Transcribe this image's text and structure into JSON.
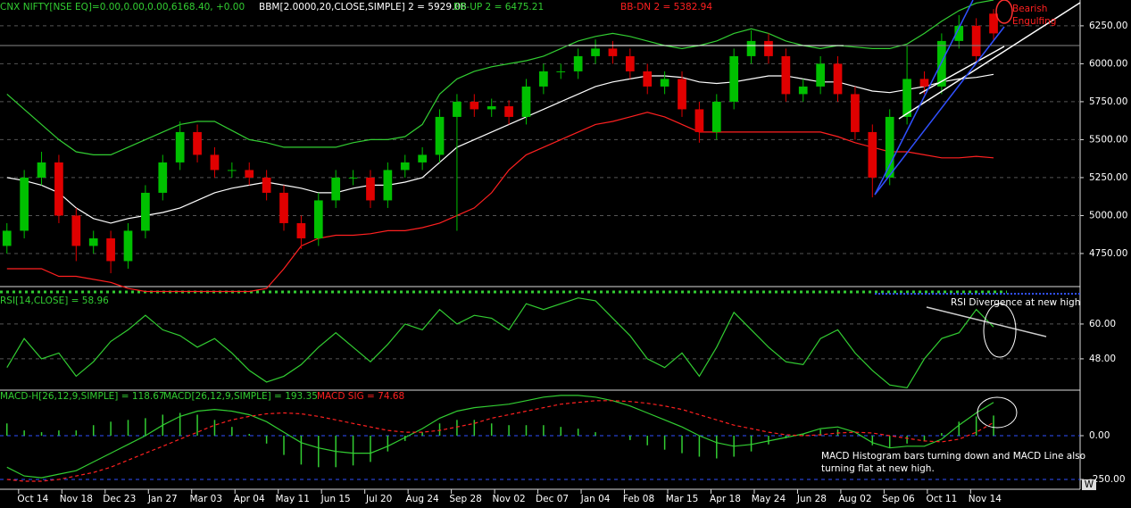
{
  "chart_data": [
    {
      "type": "candlestick",
      "title": "CNX NIFTY[NSE EQ]=0.00,0.00,0.00,6168.40, +0.00",
      "annotation": [
        "Bearish",
        "Engulfing"
      ],
      "up_color": "#00c000",
      "down_color": "#e00000",
      "open": [
        4800,
        4900,
        5250,
        5350,
        5000,
        4800,
        4850,
        4700,
        4900,
        5150,
        5350,
        5550,
        5400,
        5300,
        5300,
        5250,
        5150,
        4950,
        4850,
        5100,
        5250,
        5250,
        5100,
        5300,
        5350,
        5400,
        5650,
        5750,
        5700,
        5720,
        5650,
        5850,
        5950,
        5950,
        6050,
        6100,
        6050,
        5950,
        5850,
        5900,
        5700,
        5550,
        5750,
        6050,
        6150,
        6050,
        5800,
        5850,
        6000,
        5800,
        5550,
        5250,
        5650,
        5900,
        5850,
        6150,
        6250,
        6330
      ],
      "high": [
        4950,
        5300,
        5420,
        5400,
        5050,
        4900,
        4900,
        4950,
        5200,
        5400,
        5620,
        5600,
        5450,
        5350,
        5350,
        5300,
        5200,
        5000,
        5150,
        5300,
        5300,
        5300,
        5350,
        5400,
        5450,
        5700,
        5800,
        5800,
        5770,
        5760,
        5900,
        6000,
        6000,
        6100,
        6160,
        6150,
        6100,
        6000,
        5950,
        5950,
        5750,
        5800,
        6100,
        6220,
        6200,
        6100,
        5900,
        6050,
        6050,
        5850,
        5600,
        5700,
        6120,
        5950,
        6200,
        6320,
        6300,
        6360
      ],
      "low": [
        4750,
        4850,
        5200,
        4950,
        4700,
        4750,
        4620,
        4650,
        4850,
        5100,
        5300,
        5350,
        5250,
        5250,
        5200,
        5100,
        4900,
        4780,
        4800,
        5050,
        5200,
        5050,
        5050,
        5250,
        5300,
        5350,
        4900,
        5650,
        5650,
        5600,
        5600,
        5800,
        5900,
        5900,
        6000,
        6000,
        5900,
        5800,
        5800,
        5650,
        5480,
        5500,
        5700,
        6000,
        6000,
        5750,
        5750,
        5800,
        5750,
        5500,
        5120,
        5200,
        5600,
        5800,
        5800,
        6100,
        6000,
        6150
      ],
      "close": [
        4900,
        5250,
        5350,
        5000,
        4800,
        4850,
        4700,
        4900,
        5150,
        5350,
        5550,
        5400,
        5300,
        5300,
        5250,
        5150,
        4950,
        4850,
        5100,
        5250,
        5250,
        5100,
        5300,
        5350,
        5400,
        5650,
        5750,
        5700,
        5720,
        5650,
        5850,
        5950,
        5950,
        6050,
        6100,
        6050,
        5950,
        5850,
        5900,
        5700,
        5550,
        5750,
        6050,
        6150,
        6050,
        5800,
        5850,
        6000,
        5800,
        5550,
        5250,
        5650,
        5900,
        5850,
        6150,
        6250,
        6050,
        6200
      ],
      "series": [
        {
          "name": "BBM[2.0000,20,CLOSE,SIMPLE]  2 = 5929.08",
          "color": "#ffffff",
          "values": [
            5250,
            5230,
            5200,
            5150,
            5050,
            4980,
            4950,
            4980,
            5000,
            5020,
            5050,
            5100,
            5150,
            5180,
            5200,
            5220,
            5200,
            5180,
            5150,
            5150,
            5180,
            5200,
            5200,
            5220,
            5250,
            5350,
            5450,
            5500,
            5550,
            5600,
            5650,
            5700,
            5750,
            5800,
            5850,
            5880,
            5900,
            5920,
            5920,
            5910,
            5880,
            5870,
            5880,
            5900,
            5920,
            5920,
            5900,
            5880,
            5880,
            5850,
            5820,
            5810,
            5830,
            5850,
            5880,
            5900,
            5910,
            5930
          ]
        },
        {
          "name": "BB-UP  2 = 6475.21",
          "color": "#32cd32",
          "values": [
            5800,
            5700,
            5600,
            5500,
            5420,
            5400,
            5400,
            5450,
            5500,
            5550,
            5600,
            5620,
            5620,
            5560,
            5500,
            5480,
            5450,
            5450,
            5450,
            5450,
            5480,
            5500,
            5500,
            5520,
            5600,
            5800,
            5900,
            5950,
            5980,
            6000,
            6020,
            6050,
            6100,
            6150,
            6180,
            6200,
            6180,
            6150,
            6120,
            6100,
            6120,
            6150,
            6200,
            6230,
            6200,
            6150,
            6120,
            6100,
            6120,
            6110,
            6100,
            6100,
            6130,
            6200,
            6280,
            6350,
            6400,
            6420
          ]
        },
        {
          "name": "BB-DN  2 = 5382.94",
          "color": "#ff2020",
          "values": [
            4650,
            4650,
            4650,
            4600,
            4600,
            4580,
            4560,
            4520,
            4500,
            4500,
            4500,
            4500,
            4500,
            4500,
            4500,
            4520,
            4650,
            4800,
            4850,
            4870,
            4870,
            4880,
            4900,
            4900,
            4920,
            4950,
            5000,
            5050,
            5150,
            5300,
            5400,
            5450,
            5500,
            5550,
            5600,
            5620,
            5650,
            5680,
            5650,
            5600,
            5550,
            5550,
            5550,
            5550,
            5550,
            5550,
            5550,
            5550,
            5520,
            5480,
            5450,
            5420,
            5420,
            5400,
            5380,
            5380,
            5390,
            5380
          ]
        }
      ],
      "xlim": [
        -0.4,
        62
      ],
      "ylim": [
        4538,
        6420
      ],
      "yticks": [
        {
          "value": 4750,
          "label": "4750.00"
        },
        {
          "value": 5000,
          "label": "5000.00"
        },
        {
          "value": 5250,
          "label": "5250.00"
        },
        {
          "value": 5500,
          "label": "5500.00"
        },
        {
          "value": 5750,
          "label": "5750.00"
        },
        {
          "value": 6000,
          "label": "6000.00"
        },
        {
          "value": 6250,
          "label": "6250.00"
        }
      ],
      "grid": true
    },
    {
      "type": "line",
      "annotation": [
        "RSI Divergence at new high"
      ],
      "series": [
        {
          "name": "RSI[14,CLOSE] = 58.96",
          "color": "#32cd32",
          "values": [
            45,
            55,
            48,
            50,
            42,
            47,
            54,
            58,
            63,
            58,
            56,
            52,
            55,
            50,
            44,
            40,
            42,
            46,
            52,
            57,
            52,
            47,
            53,
            60,
            58,
            65,
            60,
            63,
            62,
            58,
            67,
            65,
            67,
            69,
            68,
            62,
            56,
            48,
            45,
            50,
            42,
            52,
            64,
            58,
            52,
            47,
            46,
            55,
            58,
            50,
            44,
            39,
            38,
            48,
            55,
            57,
            65,
            59
          ]
        }
      ],
      "xlim": [
        -0.4,
        62
      ],
      "ylim": [
        37.2,
        72.6
      ],
      "yticks": [
        {
          "value": 48,
          "label": "48.00"
        },
        {
          "value": 60,
          "label": "60.00"
        }
      ],
      "grid": true
    },
    {
      "type": "combo",
      "annotation": [
        "MACD Histogram bars turning down and MACD Line also",
        "turning flat at new high."
      ],
      "series": [
        {
          "name": "MACD-H[26,12,9,SIMPLE] = 118.67",
          "type": "bar",
          "color": "#32cd32",
          "values": [
            70,
            30,
            20,
            30,
            30,
            60,
            80,
            90,
            100,
            120,
            130,
            120,
            90,
            50,
            10,
            -45,
            -110,
            -165,
            -180,
            -180,
            -170,
            -150,
            -90,
            -30,
            20,
            70,
            90,
            90,
            70,
            60,
            60,
            60,
            50,
            40,
            20,
            0,
            -25,
            -55,
            -80,
            -100,
            -120,
            -130,
            -120,
            -90,
            -50,
            -15,
            10,
            35,
            35,
            0,
            -55,
            -70,
            -45,
            -30,
            15,
            80,
            110,
            115
          ]
        },
        {
          "name": "MACD[26,12,9,SIMPLE] = 193.35",
          "type": "line",
          "color": "#32cd32",
          "values": [
            -180,
            -230,
            -240,
            -220,
            -200,
            -150,
            -100,
            -50,
            0,
            60,
            110,
            140,
            150,
            140,
            120,
            80,
            20,
            -40,
            -70,
            -90,
            -100,
            -100,
            -60,
            -10,
            40,
            100,
            140,
            160,
            170,
            180,
            200,
            220,
            230,
            230,
            220,
            200,
            170,
            130,
            90,
            50,
            0,
            -40,
            -60,
            -50,
            -30,
            -10,
            10,
            40,
            50,
            20,
            -40,
            -70,
            -60,
            -60,
            -20,
            60,
            130,
            190
          ]
        },
        {
          "name": "MACD SIG = 74.68",
          "type": "line",
          "color": "#ff2020",
          "dashed": true,
          "values": [
            -250,
            -260,
            -260,
            -250,
            -230,
            -210,
            -180,
            -140,
            -100,
            -60,
            -20,
            20,
            60,
            90,
            110,
            125,
            130,
            125,
            110,
            90,
            70,
            50,
            30,
            20,
            20,
            30,
            50,
            70,
            100,
            120,
            140,
            160,
            180,
            190,
            200,
            200,
            195,
            185,
            170,
            150,
            120,
            90,
            60,
            40,
            20,
            5,
            0,
            5,
            15,
            20,
            15,
            0,
            -15,
            -30,
            -35,
            -20,
            20,
            75
          ]
        }
      ],
      "xlim": [
        -0.4,
        62
      ],
      "ylim": [
        -306,
        260
      ],
      "yticks": [
        {
          "value": -250,
          "label": "-250.00"
        },
        {
          "value": 0,
          "label": "0.00"
        }
      ],
      "grid": true,
      "grid_color": "#3050ff",
      "xticks": [
        {
          "value": 1.5,
          "label": "Oct 14"
        },
        {
          "value": 4,
          "label": "Nov 18"
        },
        {
          "value": 6.5,
          "label": "Dec 23"
        },
        {
          "value": 9,
          "label": "Jan 27"
        },
        {
          "value": 11.5,
          "label": "Mar 03"
        },
        {
          "value": 14,
          "label": "Apr 04"
        },
        {
          "value": 16.5,
          "label": "May 11"
        },
        {
          "value": 19,
          "label": "Jun 15"
        },
        {
          "value": 21.5,
          "label": "Jul 20"
        },
        {
          "value": 24,
          "label": "Aug 24"
        },
        {
          "value": 26.5,
          "label": "Sep 28"
        },
        {
          "value": 29,
          "label": "Nov 02"
        },
        {
          "value": 31.5,
          "label": "Dec 07"
        },
        {
          "value": 34,
          "label": "Jan 04"
        },
        {
          "value": 36.5,
          "label": "Feb 08"
        },
        {
          "value": 39,
          "label": "Mar 15"
        },
        {
          "value": 41.5,
          "label": "Apr 18"
        },
        {
          "value": 44,
          "label": "May 24"
        },
        {
          "value": 46.5,
          "label": "Jun 28"
        },
        {
          "value": 49,
          "label": "Aug 02"
        },
        {
          "value": 51.5,
          "label": "Sep 06"
        },
        {
          "value": 54,
          "label": "Oct 11"
        },
        {
          "value": 56.5,
          "label": "Nov 14"
        }
      ],
      "corner_mark": "W"
    }
  ]
}
